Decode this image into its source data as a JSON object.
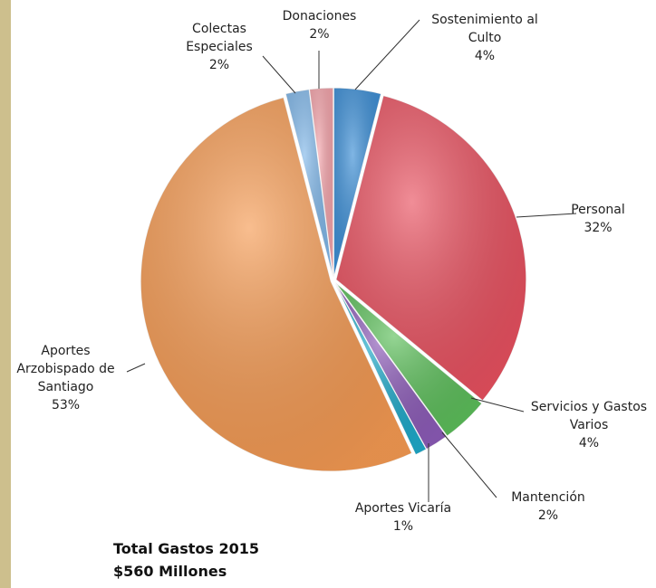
{
  "chart_data": {
    "type": "pie",
    "categories": [
      "Sostenimiento al Culto",
      "Personal",
      "Servicios y Gastos Varios",
      "Mantención",
      "Aportes Vicaría",
      "Aportes Arzobispado de Santiago",
      "Colectas Especiales",
      "Donaciones"
    ],
    "values": [
      4,
      32,
      4,
      2,
      1,
      53,
      2,
      2
    ],
    "value_labels": [
      "4%",
      "32%",
      "4%",
      "2%",
      "1%",
      "53%",
      "2%",
      "2%"
    ],
    "colors": [
      "#3b8ed6",
      "#e9505f",
      "#5cbf5a",
      "#8c5bb8",
      "#1ea9c9",
      "#f59a52",
      "#80b7e9",
      "#f4a3aa"
    ],
    "annotations": [
      "Total Gastos 2015",
      "$560 Millones"
    ]
  }
}
